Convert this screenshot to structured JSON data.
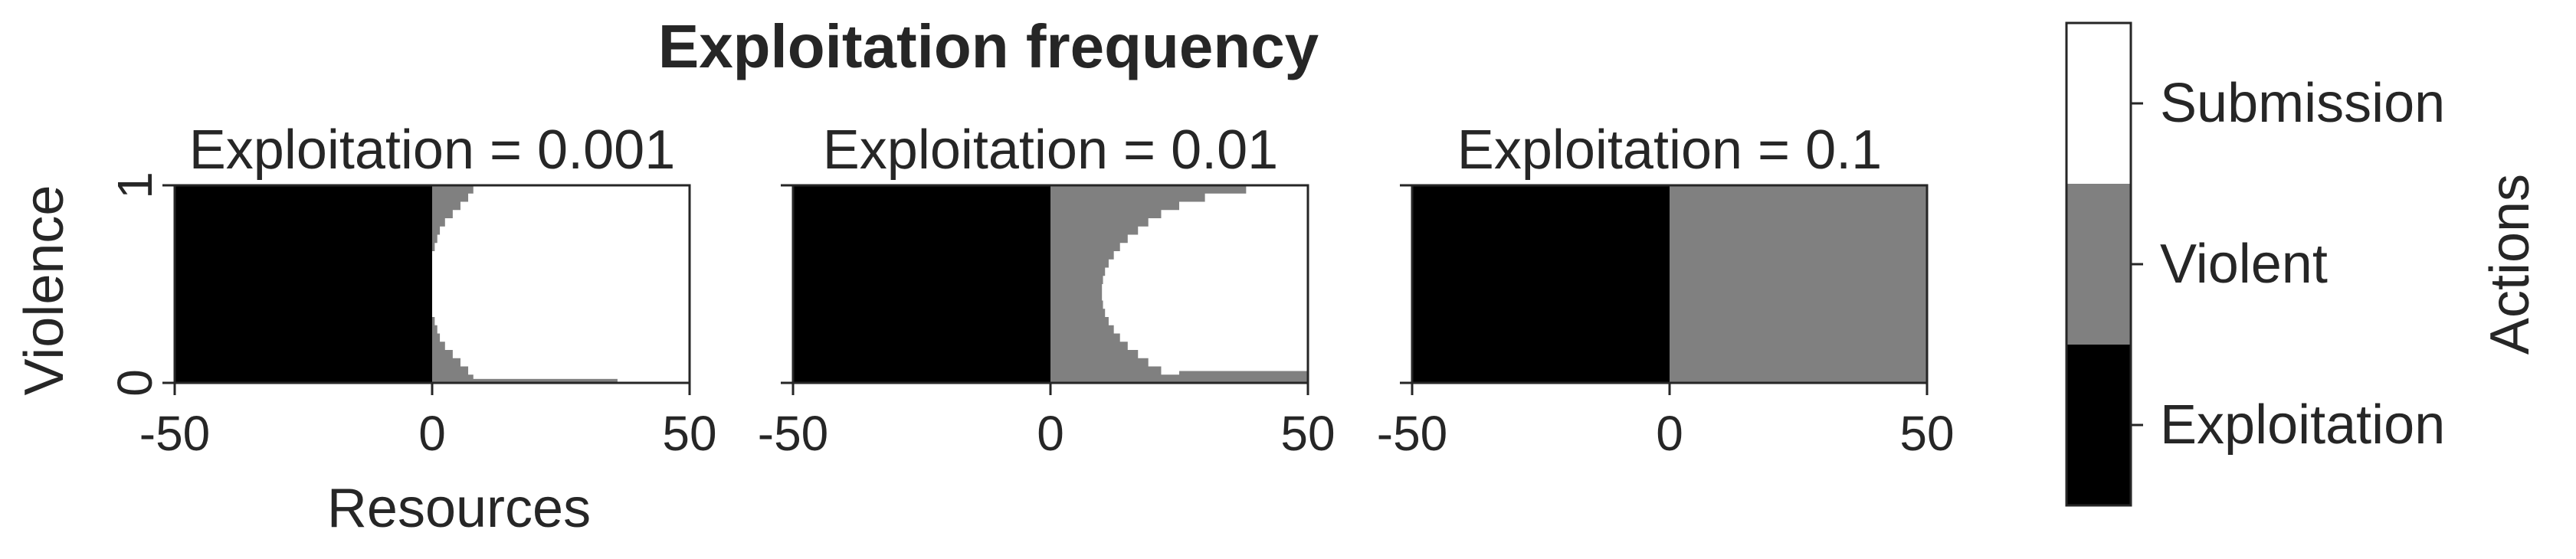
{
  "figure": {
    "suptitle": "Exploitation frequency"
  },
  "chart_data": [
    {
      "type": "heatmap",
      "title": "Exploitation = 0.001",
      "xlabel": "Resources",
      "ylabel": "Violence",
      "xlim": [
        -50,
        50
      ],
      "ylim": [
        0,
        1
      ],
      "xticks": [
        "-50",
        "0",
        "50"
      ],
      "yticks": [
        "0",
        "1"
      ],
      "regions": {
        "exploitation": "Resources -50 to 0 (all violence levels)",
        "violent": "Resources 0 to about 8 near violence 0 and 1; narrowing toward violence 0.5",
        "submission": "Remaining area for Resources > 0"
      },
      "boundary": {
        "exploitation_to_violent_x": 0,
        "violent_outer_x": [
          8.0,
          7.0,
          5.5,
          4.0,
          2.5,
          1.5,
          1.0,
          0.5,
          0.0,
          0.0,
          0.0,
          0.0,
          0.0,
          0.0,
          0.0,
          0.0,
          0.5,
          1.0,
          1.5,
          2.5,
          4.0,
          5.5,
          7.0,
          8.0
        ],
        "bottom_violent_band_to_x": 36,
        "bottom_violent_band_to_y": 0.02
      }
    },
    {
      "type": "heatmap",
      "title": "Exploitation = 0.01",
      "xlabel": "",
      "ylabel": "",
      "xlim": [
        -50,
        50
      ],
      "ylim": [
        0,
        1
      ],
      "xticks": [
        "-50",
        "0",
        "50"
      ],
      "yticks": [],
      "regions": {
        "exploitation": "Resources -50 to 0 (all violence levels)",
        "violent": "Resources 0 to about 10; wider near violence 0 and 1",
        "submission": "Region right of the violent band, bounded below near violence 0.05"
      },
      "boundary": {
        "exploitation_to_violent_x": 0,
        "violent_outer_x": [
          38.0,
          30.0,
          25.0,
          21.5,
          19.0,
          17.0,
          15.0,
          13.5,
          12.3,
          11.3,
          10.6,
          10.2,
          10.0,
          10.0,
          10.2,
          10.6,
          11.3,
          12.3,
          13.5,
          15.0,
          17.0,
          19.0,
          21.5,
          25.0
        ],
        "bottom_violent_band_to_y": 0.06,
        "bottom_violent_band_from_x": 25
      }
    },
    {
      "type": "heatmap",
      "title": "Exploitation = 0.1",
      "xlabel": "",
      "ylabel": "",
      "xlim": [
        -50,
        50
      ],
      "ylim": [
        0,
        1
      ],
      "xticks": [
        "-50",
        "0",
        "50"
      ],
      "yticks": [],
      "regions": {
        "exploitation": "Resources -50 to 0 (all violence levels)",
        "violent": "Resources 0 to 50 (all violence levels)",
        "submission": "none"
      },
      "boundary": {
        "exploitation_to_violent_x": 0
      }
    }
  ],
  "colorbar": {
    "label": "Actions",
    "categories": [
      {
        "label": "Submission",
        "color": "#ffffff"
      },
      {
        "label": "Violent",
        "color": "#808080"
      },
      {
        "label": "Exploitation",
        "color": "#000000"
      }
    ]
  },
  "colors": {
    "exploitation": "#000000",
    "violent": "#808080",
    "submission": "#ffffff",
    "axis": "#262626"
  }
}
